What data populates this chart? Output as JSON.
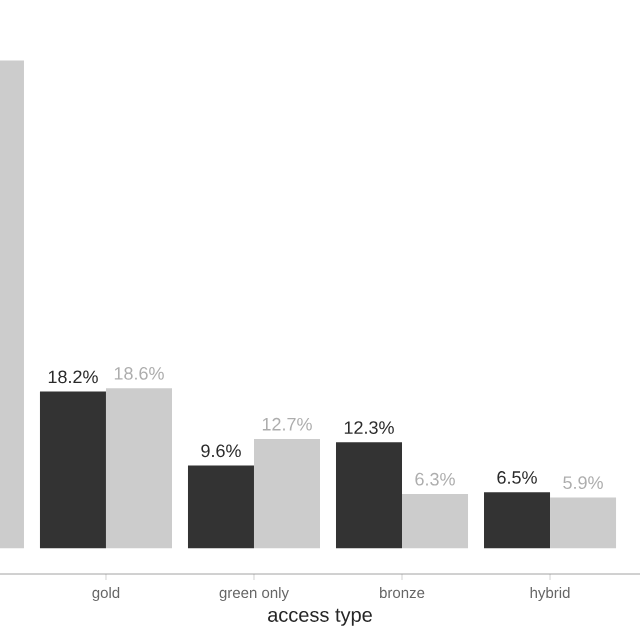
{
  "chart_data": {
    "type": "bar",
    "xlabel": "access type",
    "categories": [
      null,
      "gold",
      "green only",
      "bronze",
      "hybrid"
    ],
    "series": [
      {
        "color": "#333333",
        "values": [
          null,
          18.2,
          9.6,
          12.3,
          6.5
        ],
        "value_labels": [
          null,
          "18.2%",
          "9.6%",
          "12.3%",
          "6.5%"
        ]
      },
      {
        "color": "#cccccc",
        "values": [
          56.7,
          18.6,
          12.7,
          6.3,
          5.9
        ],
        "value_labels": [
          null,
          "18.6%",
          "12.7%",
          "6.3%",
          "5.9%"
        ]
      }
    ],
    "grid": false,
    "tick_labels": "x"
  }
}
